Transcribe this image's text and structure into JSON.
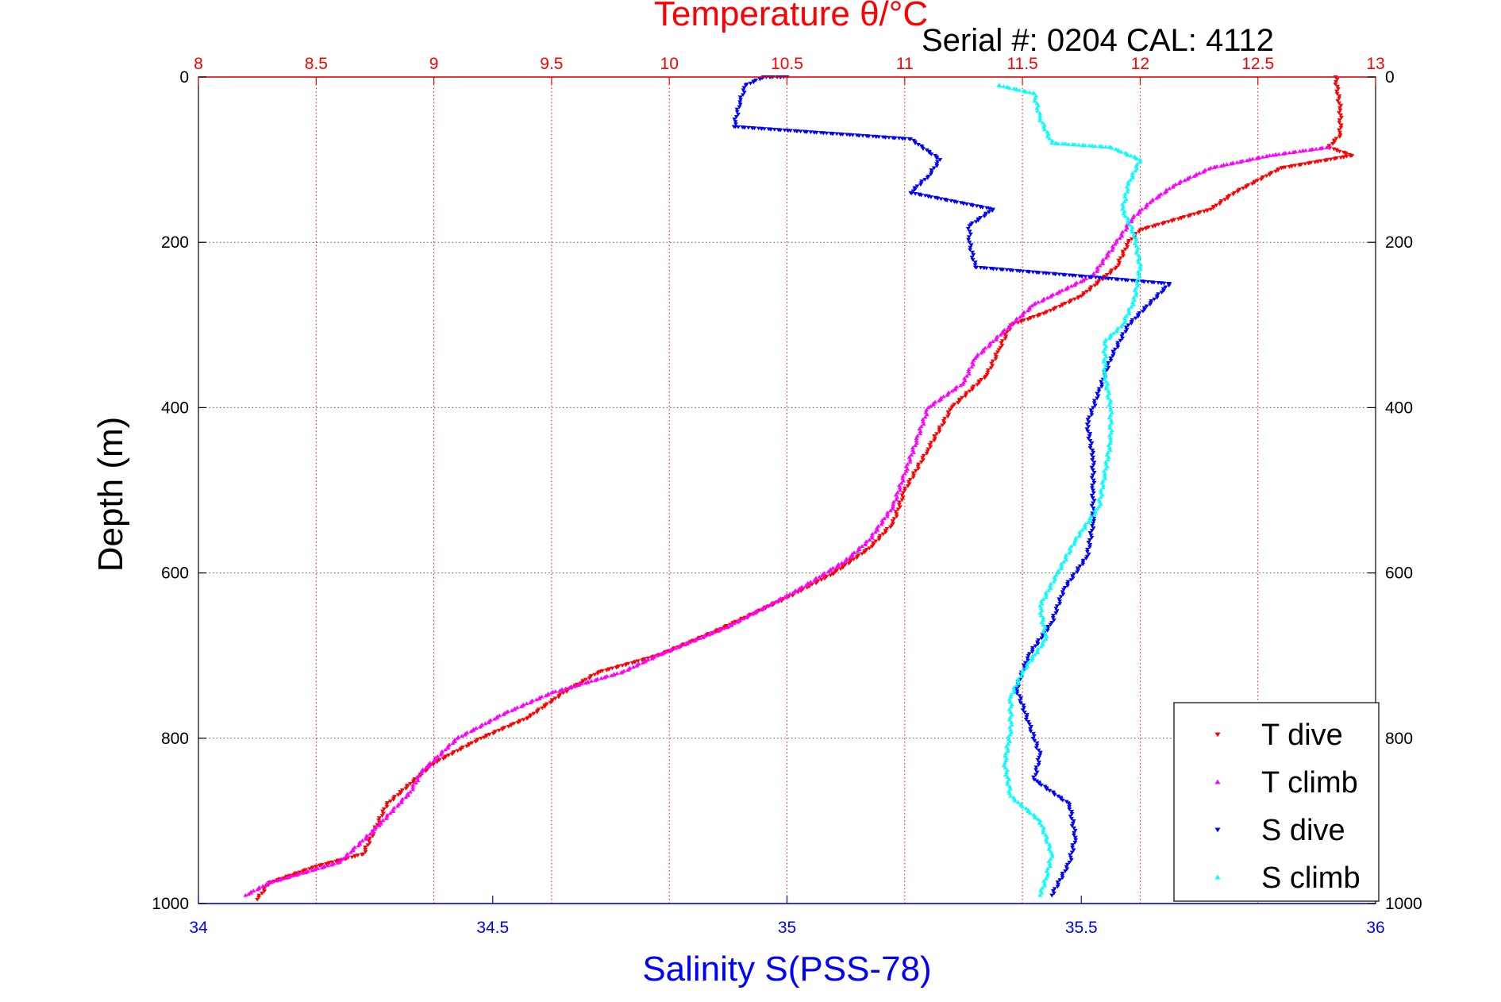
{
  "chart_data": {
    "type": "scatter",
    "title": "Temperature θ/°C",
    "subtitle": "Serial #: 0204  CAL: 4112",
    "xlabel": "Salinity S(PSS-78)",
    "ylabel": "Depth (m)",
    "x_top": {
      "label": "Temperature θ/°C",
      "range": [
        8,
        13
      ],
      "ticks": [
        "8",
        "8.5",
        "9",
        "9.5",
        "10",
        "10.5",
        "11",
        "11.5",
        "12",
        "12.5",
        "13"
      ],
      "color": "#ff0000",
      "grid": true
    },
    "x_bottom": {
      "label": "Salinity S(PSS-78)",
      "range": [
        34,
        36
      ],
      "ticks": [
        "34",
        "34.5",
        "35",
        "35.5",
        "36"
      ],
      "color": "#0000ff"
    },
    "y": {
      "label": "Depth (m)",
      "range": [
        0,
        1000
      ],
      "reversed": true,
      "ticks": [
        "0",
        "200",
        "400",
        "600",
        "800",
        "1000"
      ],
      "grid": true
    },
    "legend_position": "bottom-right",
    "series": [
      {
        "name": "T dive",
        "axis": "x_top",
        "color": "#ff0000",
        "marker": "triangle-down",
        "points": [
          [
            12.83,
            0
          ],
          [
            12.85,
            40
          ],
          [
            12.85,
            70
          ],
          [
            12.8,
            85
          ],
          [
            12.9,
            95
          ],
          [
            12.6,
            110
          ],
          [
            12.4,
            140
          ],
          [
            12.3,
            160
          ],
          [
            12.0,
            185
          ],
          [
            11.95,
            200
          ],
          [
            11.9,
            230
          ],
          [
            11.75,
            265
          ],
          [
            11.6,
            285
          ],
          [
            11.45,
            300
          ],
          [
            11.4,
            330
          ],
          [
            11.35,
            360
          ],
          [
            11.2,
            400
          ],
          [
            11.1,
            450
          ],
          [
            11.0,
            500
          ],
          [
            10.95,
            540
          ],
          [
            10.85,
            570
          ],
          [
            10.7,
            600
          ],
          [
            10.5,
            630
          ],
          [
            10.2,
            670
          ],
          [
            9.95,
            700
          ],
          [
            9.7,
            720
          ],
          [
            9.55,
            745
          ],
          [
            9.4,
            775
          ],
          [
            9.2,
            800
          ],
          [
            9.0,
            830
          ],
          [
            8.9,
            855
          ],
          [
            8.8,
            880
          ],
          [
            8.75,
            910
          ],
          [
            8.7,
            940
          ],
          [
            8.5,
            955
          ],
          [
            8.3,
            975
          ],
          [
            8.25,
            995
          ]
        ]
      },
      {
        "name": "T climb",
        "axis": "x_top",
        "color": "#ff00ff",
        "marker": "triangle-up",
        "points": [
          [
            12.8,
            85
          ],
          [
            12.55,
            95
          ],
          [
            12.3,
            110
          ],
          [
            12.15,
            130
          ],
          [
            12.05,
            150
          ],
          [
            11.97,
            170
          ],
          [
            11.9,
            200
          ],
          [
            11.8,
            240
          ],
          [
            11.55,
            275
          ],
          [
            11.45,
            300
          ],
          [
            11.3,
            340
          ],
          [
            11.25,
            370
          ],
          [
            11.1,
            400
          ],
          [
            11.05,
            440
          ],
          [
            11.0,
            480
          ],
          [
            10.95,
            520
          ],
          [
            10.85,
            560
          ],
          [
            10.75,
            585
          ],
          [
            10.55,
            620
          ],
          [
            10.25,
            665
          ],
          [
            9.95,
            700
          ],
          [
            9.8,
            720
          ],
          [
            9.5,
            745
          ],
          [
            9.3,
            770
          ],
          [
            9.1,
            800
          ],
          [
            8.95,
            840
          ],
          [
            8.9,
            865
          ],
          [
            8.85,
            880
          ],
          [
            8.75,
            910
          ],
          [
            8.6,
            950
          ],
          [
            8.3,
            975
          ],
          [
            8.2,
            990
          ]
        ]
      },
      {
        "name": "S dive",
        "axis": "x_bottom",
        "color": "#0000ff",
        "marker": "triangle-down",
        "points": [
          [
            35.0,
            0
          ],
          [
            34.96,
            0
          ],
          [
            34.93,
            10
          ],
          [
            34.92,
            30
          ],
          [
            34.91,
            60
          ],
          [
            35.21,
            75
          ],
          [
            35.26,
            100
          ],
          [
            35.24,
            120
          ],
          [
            35.21,
            140
          ],
          [
            35.35,
            160
          ],
          [
            35.31,
            180
          ],
          [
            35.31,
            200
          ],
          [
            35.32,
            230
          ],
          [
            35.65,
            250
          ],
          [
            35.58,
            300
          ],
          [
            35.55,
            340
          ],
          [
            35.53,
            380
          ],
          [
            35.51,
            420
          ],
          [
            35.52,
            460
          ],
          [
            35.52,
            500
          ],
          [
            35.52,
            540
          ],
          [
            35.51,
            580
          ],
          [
            35.47,
            620
          ],
          [
            35.45,
            660
          ],
          [
            35.41,
            700
          ],
          [
            35.39,
            740
          ],
          [
            35.41,
            780
          ],
          [
            35.43,
            820
          ],
          [
            35.42,
            850
          ],
          [
            35.48,
            880
          ],
          [
            35.49,
            920
          ],
          [
            35.48,
            950
          ],
          [
            35.45,
            990
          ]
        ]
      },
      {
        "name": "S climb",
        "axis": "x_bottom",
        "color": "#00ffff",
        "marker": "triangle-up",
        "points": [
          [
            35.36,
            10
          ],
          [
            35.42,
            20
          ],
          [
            35.43,
            50
          ],
          [
            35.45,
            80
          ],
          [
            35.55,
            85
          ],
          [
            35.6,
            100
          ],
          [
            35.58,
            130
          ],
          [
            35.57,
            160
          ],
          [
            35.59,
            190
          ],
          [
            35.6,
            230
          ],
          [
            35.59,
            270
          ],
          [
            35.57,
            300
          ],
          [
            35.54,
            320
          ],
          [
            35.54,
            360
          ],
          [
            35.55,
            400
          ],
          [
            35.55,
            440
          ],
          [
            35.54,
            480
          ],
          [
            35.53,
            520
          ],
          [
            35.49,
            560
          ],
          [
            35.46,
            600
          ],
          [
            35.43,
            640
          ],
          [
            35.44,
            680
          ],
          [
            35.4,
            720
          ],
          [
            35.38,
            750
          ],
          [
            35.38,
            790
          ],
          [
            35.37,
            830
          ],
          [
            35.38,
            870
          ],
          [
            35.43,
            900
          ],
          [
            35.45,
            940
          ],
          [
            35.44,
            970
          ],
          [
            35.43,
            990
          ]
        ]
      }
    ]
  }
}
